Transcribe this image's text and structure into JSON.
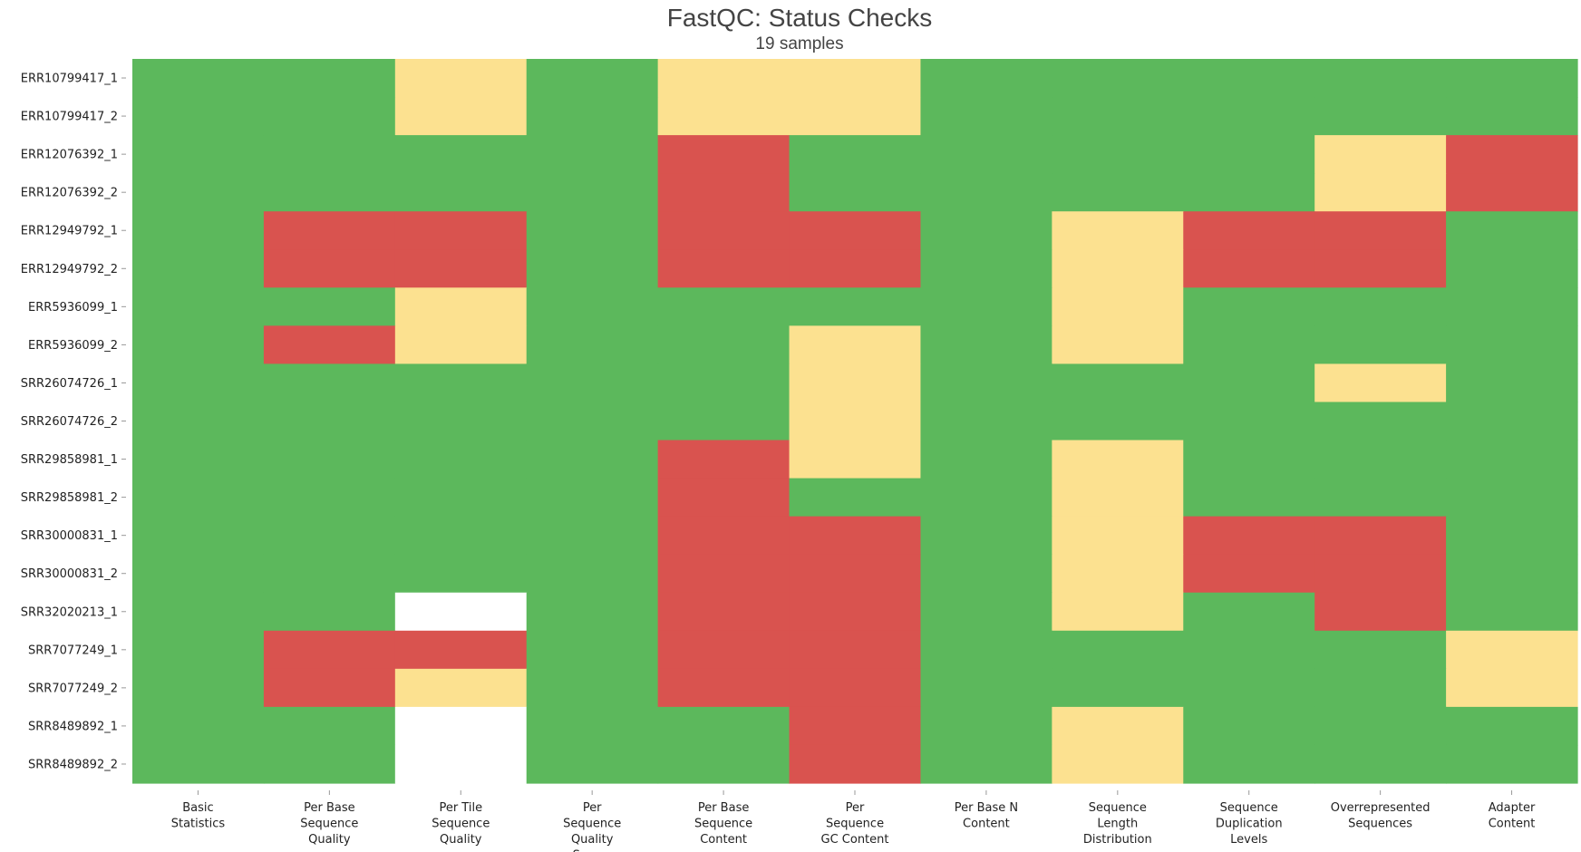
{
  "chart_data": {
    "type": "heatmap",
    "title": "FastQC: Status Checks",
    "subtitle": "19 samples",
    "rows": [
      "ERR10799417_1",
      "ERR10799417_2",
      "ERR12076392_1",
      "ERR12076392_2",
      "ERR12949792_1",
      "ERR12949792_2",
      "ERR5936099_1",
      "ERR5936099_2",
      "SRR26074726_1",
      "SRR26074726_2",
      "SRR29858981_1",
      "SRR29858981_2",
      "SRR30000831_1",
      "SRR30000831_2",
      "SRR32020213_1",
      "SRR7077249_1",
      "SRR7077249_2",
      "SRR8489892_1",
      "SRR8489892_2"
    ],
    "columns": [
      [
        "Basic",
        "Statistics"
      ],
      [
        "Per Base",
        "Sequence",
        "Quality"
      ],
      [
        "Per Tile",
        "Sequence",
        "Quality"
      ],
      [
        "Per",
        "Sequence",
        "Quality",
        "Scores"
      ],
      [
        "Per Base",
        "Sequence",
        "Content"
      ],
      [
        "Per",
        "Sequence",
        "GC Content"
      ],
      [
        "Per Base N",
        "Content"
      ],
      [
        "Sequence",
        "Length",
        "Distribution"
      ],
      [
        "Sequence",
        "Duplication",
        "Levels"
      ],
      [
        "Overrepresented",
        "Sequences"
      ],
      [
        "Adapter",
        "Content"
      ]
    ],
    "status_legend": {
      "pass": "#5cb85c",
      "warn": "#fce190",
      "fail": "#d9534f",
      "na": "#ffffff"
    },
    "values": [
      [
        "pass",
        "pass",
        "warn",
        "pass",
        "warn",
        "warn",
        "pass",
        "pass",
        "pass",
        "pass",
        "pass"
      ],
      [
        "pass",
        "pass",
        "warn",
        "pass",
        "warn",
        "warn",
        "pass",
        "pass",
        "pass",
        "pass",
        "pass"
      ],
      [
        "pass",
        "pass",
        "pass",
        "pass",
        "fail",
        "pass",
        "pass",
        "pass",
        "pass",
        "warn",
        "fail"
      ],
      [
        "pass",
        "pass",
        "pass",
        "pass",
        "fail",
        "pass",
        "pass",
        "pass",
        "pass",
        "warn",
        "fail"
      ],
      [
        "pass",
        "fail",
        "fail",
        "pass",
        "fail",
        "fail",
        "pass",
        "warn",
        "fail",
        "fail",
        "pass"
      ],
      [
        "pass",
        "fail",
        "fail",
        "pass",
        "fail",
        "fail",
        "pass",
        "warn",
        "fail",
        "fail",
        "pass"
      ],
      [
        "pass",
        "pass",
        "warn",
        "pass",
        "pass",
        "pass",
        "pass",
        "warn",
        "pass",
        "pass",
        "pass"
      ],
      [
        "pass",
        "fail",
        "warn",
        "pass",
        "pass",
        "warn",
        "pass",
        "warn",
        "pass",
        "pass",
        "pass"
      ],
      [
        "pass",
        "pass",
        "pass",
        "pass",
        "pass",
        "warn",
        "pass",
        "pass",
        "pass",
        "warn",
        "pass"
      ],
      [
        "pass",
        "pass",
        "pass",
        "pass",
        "pass",
        "warn",
        "pass",
        "pass",
        "pass",
        "pass",
        "pass"
      ],
      [
        "pass",
        "pass",
        "pass",
        "pass",
        "fail",
        "warn",
        "pass",
        "warn",
        "pass",
        "pass",
        "pass"
      ],
      [
        "pass",
        "pass",
        "pass",
        "pass",
        "fail",
        "pass",
        "pass",
        "warn",
        "pass",
        "pass",
        "pass"
      ],
      [
        "pass",
        "pass",
        "pass",
        "pass",
        "fail",
        "fail",
        "pass",
        "warn",
        "fail",
        "fail",
        "pass"
      ],
      [
        "pass",
        "pass",
        "pass",
        "pass",
        "fail",
        "fail",
        "pass",
        "warn",
        "fail",
        "fail",
        "pass"
      ],
      [
        "pass",
        "pass",
        "na",
        "pass",
        "fail",
        "fail",
        "pass",
        "warn",
        "pass",
        "fail",
        "pass"
      ],
      [
        "pass",
        "fail",
        "fail",
        "pass",
        "fail",
        "fail",
        "pass",
        "pass",
        "pass",
        "pass",
        "warn"
      ],
      [
        "pass",
        "fail",
        "warn",
        "pass",
        "fail",
        "fail",
        "pass",
        "pass",
        "pass",
        "pass",
        "warn"
      ],
      [
        "pass",
        "pass",
        "na",
        "pass",
        "pass",
        "fail",
        "pass",
        "warn",
        "pass",
        "pass",
        "pass"
      ],
      [
        "pass",
        "pass",
        "na",
        "pass",
        "pass",
        "fail",
        "pass",
        "warn",
        "pass",
        "pass",
        "pass"
      ]
    ]
  }
}
